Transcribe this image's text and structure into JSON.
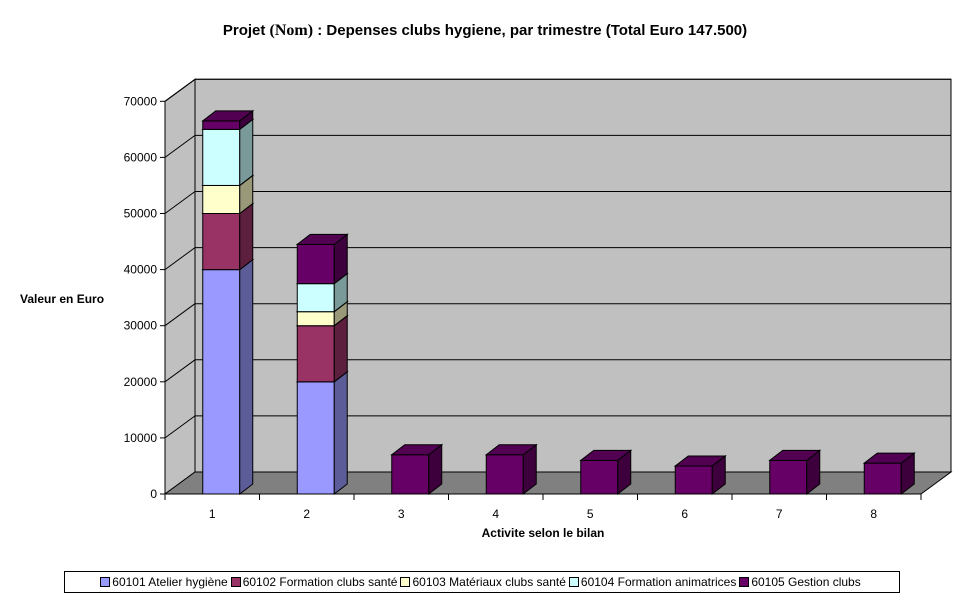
{
  "chart_title": {
    "prefix": "Projet",
    "name": "(Nom)",
    "suffix": ": Depenses clubs hygiene, par trimestre (Total Euro 147.500)"
  },
  "colors": {
    "wall": "#c0c0c0",
    "floor": "#808080",
    "grid": "#000000",
    "series": [
      "#9999ff",
      "#993366",
      "#ffffcc",
      "#ccffff",
      "#660066"
    ]
  },
  "chart_data": {
    "type": "bar",
    "stacked": true,
    "three_d": true,
    "xlabel": "Activite selon le bilan",
    "ylabel": "Valeur en Euro",
    "ylim": [
      0,
      70000
    ],
    "yticks": [
      0,
      10000,
      20000,
      30000,
      40000,
      50000,
      60000,
      70000
    ],
    "categories": [
      "1",
      "2",
      "3",
      "4",
      "5",
      "6",
      "7",
      "8"
    ],
    "grid": true,
    "legend_position": "bottom",
    "series": [
      {
        "name": "60101 Atelier hygiène",
        "values": [
          40000,
          20000,
          0,
          0,
          0,
          0,
          0,
          0
        ]
      },
      {
        "name": "60102 Formation clubs santé",
        "values": [
          10000,
          10000,
          0,
          0,
          0,
          0,
          0,
          0
        ]
      },
      {
        "name": "60103 Matériaux clubs santé",
        "values": [
          5000,
          2500,
          0,
          0,
          0,
          0,
          0,
          0
        ]
      },
      {
        "name": "60104 Formation animatrices",
        "values": [
          10000,
          5000,
          0,
          0,
          0,
          0,
          0,
          0
        ]
      },
      {
        "name": "60105 Gestion clubs",
        "values": [
          1500,
          7000,
          7000,
          7000,
          6000,
          5000,
          6000,
          5500
        ]
      }
    ]
  }
}
